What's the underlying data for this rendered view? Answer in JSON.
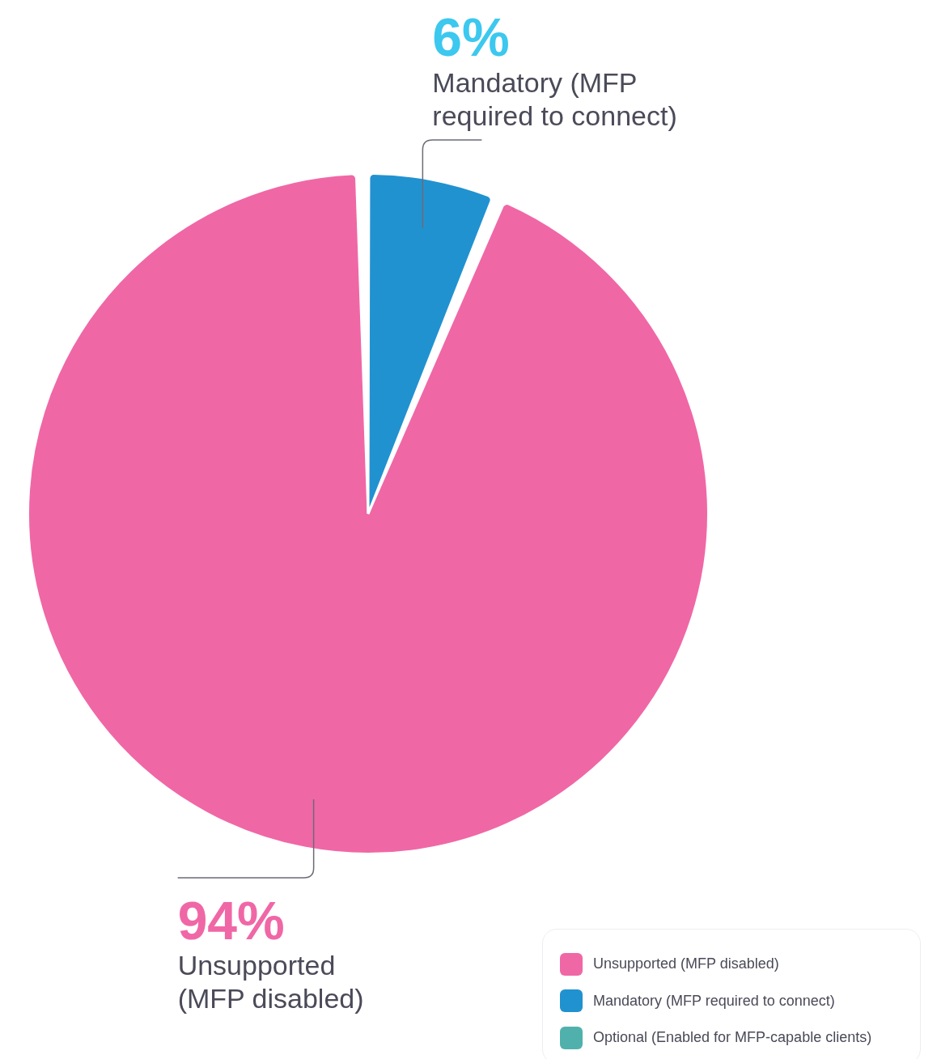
{
  "chart_data": {
    "type": "pie",
    "categories": [
      "Unsupported (MFP disabled)",
      "Mandatory (MFP required to connect)",
      "Optional (Enabled for MFP-capable clients)"
    ],
    "values": [
      94,
      6,
      0
    ],
    "colors": [
      "#f067a6",
      "#2192d0",
      "#50b1ac"
    ],
    "value_labels": [
      "94%",
      "6%",
      null
    ],
    "legend": "bottom right"
  }
}
